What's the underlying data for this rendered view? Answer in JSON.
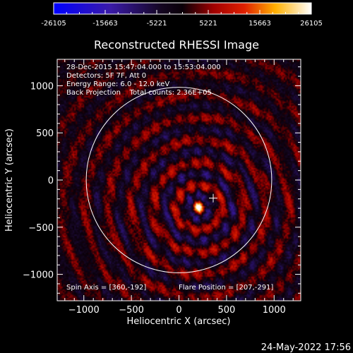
{
  "colorbar": {
    "tick_labels": [
      "-26105",
      "-15663",
      "-5221",
      "5221",
      "15663",
      "26105"
    ],
    "min": -26105,
    "max": 26105,
    "colormap": "blue-purple-red-yellow-white"
  },
  "chart_data": {
    "type": "heatmap",
    "title": "Reconstructed RHESSI Image",
    "xlabel": "Heliocentric X (arcsec)",
    "ylabel": "Heliocentric Y (arcsec)",
    "xlim": [
      -1280,
      1280
    ],
    "ylim": [
      -1280,
      1280
    ],
    "x_ticks": [
      -1000,
      -500,
      0,
      500,
      1000
    ],
    "y_ticks": [
      -1000,
      -500,
      0,
      500,
      1000
    ],
    "solar_limb_radius_arcsec": 975,
    "source_center": [
      207,
      -291
    ],
    "crosshair": [
      360,
      -192
    ],
    "annotations": [
      "28-Dec-2015 15:47:04.000 to 15:53:04.000",
      "Detectors: 5F 7F, Att 0",
      "Energy Range: 6.0 - 12.0 keV",
      "Back Projection    Total counts: 2.36E+05",
      "Spin Axis = [360,-192]",
      "Flare Position = [207,-291]"
    ]
  },
  "footer": {
    "timestamp": "24-May-2022 17:56"
  }
}
